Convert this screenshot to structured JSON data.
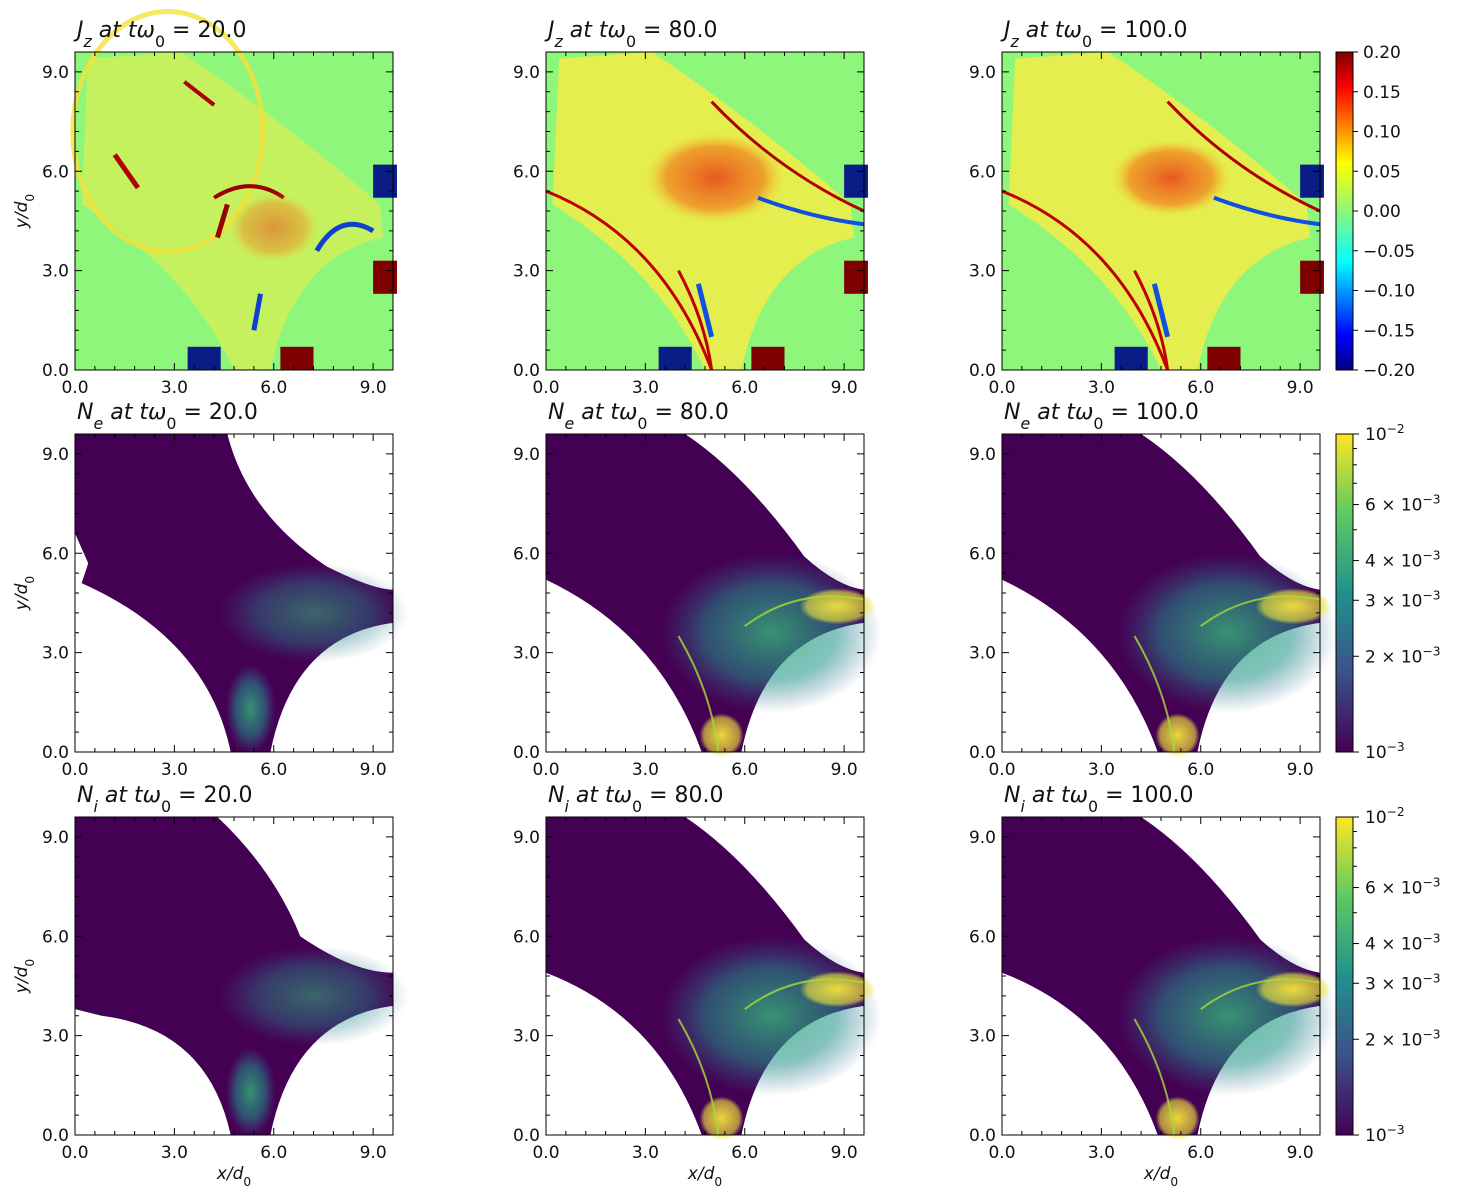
{
  "figure": {
    "x_tick_labels": [
      "0.0",
      "3.0",
      "6.0",
      "9.0"
    ],
    "y_tick_labels": [
      "0.0",
      "3.0",
      "6.0",
      "9.0"
    ],
    "ylabel": "y/d0",
    "xlabel": "x/d0",
    "colors": {
      "jz_background": "#8ef67a",
      "density_dark": "#440154",
      "electrode_blue": "#0a1d86",
      "electrode_red": "#7f0000"
    }
  },
  "chart_data": [
    {
      "type": "heatmap",
      "row": 0,
      "col": 0,
      "quantity": "Jz",
      "time": "20.0",
      "title": "J_z at tω_0 = 20.0",
      "xlabel": "",
      "ylabel": "y/d0",
      "xlim": [
        0,
        9.6
      ],
      "ylim": [
        0,
        9.6
      ]
    },
    {
      "type": "heatmap",
      "row": 0,
      "col": 1,
      "quantity": "Jz",
      "time": "80.0",
      "title": "J_z at tω_0 = 80.0",
      "xlabel": "",
      "ylabel": "",
      "xlim": [
        0,
        9.6
      ],
      "ylim": [
        0,
        9.6
      ]
    },
    {
      "type": "heatmap",
      "row": 0,
      "col": 2,
      "quantity": "Jz",
      "time": "100.0",
      "title": "J_z at tω_0 = 100.0",
      "xlabel": "",
      "ylabel": "",
      "xlim": [
        0,
        9.6
      ],
      "ylim": [
        0,
        9.6
      ],
      "colorbar": {
        "scale": "linear",
        "range": [
          -0.2,
          0.2
        ],
        "ticks": [
          "0.20",
          "0.15",
          "0.10",
          "0.05",
          "0.00",
          "−0.05",
          "−0.10",
          "−0.15",
          "−0.20"
        ]
      }
    },
    {
      "type": "heatmap",
      "row": 1,
      "col": 0,
      "quantity": "Ne",
      "time": "20.0",
      "title": "N_e at tω_0 = 20.0",
      "xlabel": "",
      "ylabel": "y/d0",
      "xlim": [
        0,
        9.6
      ],
      "ylim": [
        0,
        9.6
      ]
    },
    {
      "type": "heatmap",
      "row": 1,
      "col": 1,
      "quantity": "Ne",
      "time": "80.0",
      "title": "N_e at tω_0 = 80.0",
      "xlabel": "",
      "ylabel": "",
      "xlim": [
        0,
        9.6
      ],
      "ylim": [
        0,
        9.6
      ]
    },
    {
      "type": "heatmap",
      "row": 1,
      "col": 2,
      "quantity": "Ne",
      "time": "100.0",
      "title": "N_e at tω_0 = 100.0",
      "xlabel": "",
      "ylabel": "",
      "xlim": [
        0,
        9.6
      ],
      "ylim": [
        0,
        9.6
      ],
      "colorbar": {
        "scale": "log",
        "range": [
          0.001,
          0.01
        ],
        "ticks": [
          "10^-2",
          "6×10^-3",
          "4×10^-3",
          "3×10^-3",
          "2×10^-3",
          "10^-3"
        ]
      }
    },
    {
      "type": "heatmap",
      "row": 2,
      "col": 0,
      "quantity": "Ni",
      "time": "20.0",
      "title": "N_i at tω_0 = 20.0",
      "xlabel": "x/d0",
      "ylabel": "y/d0",
      "xlim": [
        0,
        9.6
      ],
      "ylim": [
        0,
        9.6
      ]
    },
    {
      "type": "heatmap",
      "row": 2,
      "col": 1,
      "quantity": "Ni",
      "time": "80.0",
      "title": "N_i at tω_0 = 80.0",
      "xlabel": "x/d0",
      "ylabel": "",
      "xlim": [
        0,
        9.6
      ],
      "ylim": [
        0,
        9.6
      ]
    },
    {
      "type": "heatmap",
      "row": 2,
      "col": 2,
      "quantity": "Ni",
      "time": "100.0",
      "title": "N_i at tω_0 = 100.0",
      "xlabel": "x/d0",
      "ylabel": "",
      "xlim": [
        0,
        9.6
      ],
      "ylim": [
        0,
        9.6
      ],
      "colorbar": {
        "scale": "log",
        "range": [
          0.001,
          0.01
        ],
        "ticks": [
          "10^-2",
          "6×10^-3",
          "4×10^-3",
          "3×10^-3",
          "2×10^-3",
          "10^-3"
        ]
      }
    }
  ]
}
